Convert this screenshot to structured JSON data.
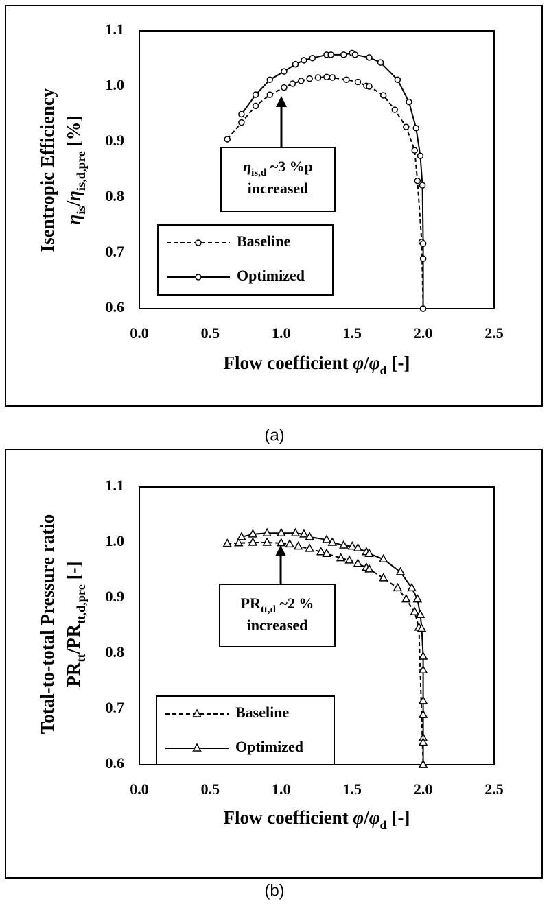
{
  "chart_data": [
    {
      "type": "line",
      "caption": "(a)",
      "x_label": [
        {
          "text": "Flow coefficient "
        },
        {
          "text": "φ",
          "italic": true
        },
        {
          "text": "/"
        },
        {
          "text": "φ",
          "italic": true
        },
        {
          "text": "d",
          "sub": true
        },
        {
          "text": " [-]"
        }
      ],
      "y_label": [
        [
          {
            "text": "Isentropic Efficiency"
          }
        ],
        [
          {
            "text": "η",
            "italic": true
          },
          {
            "text": "is",
            "sub": true
          },
          {
            "text": "/"
          },
          {
            "text": "η",
            "italic": true
          },
          {
            "text": "is,d,pre",
            "sub": true
          },
          {
            "text": " [%]"
          }
        ]
      ],
      "annotation": [
        [
          {
            "text": "η",
            "italic": true
          },
          {
            "text": "is,d",
            "sub": true
          },
          {
            "text": " ~3 %p"
          }
        ],
        [
          {
            "text": "increased"
          }
        ]
      ],
      "xlim": [
        0,
        2.5
      ],
      "ylim": [
        0.6,
        1.1
      ],
      "xticks": [
        {
          "value": 0,
          "label": "0.0"
        },
        0.5,
        {
          "value": 1,
          "label": "1.0"
        },
        1.5,
        {
          "value": 2,
          "label": "2.0"
        },
        2.5
      ],
      "yticks": [
        0.6,
        0.7,
        0.8,
        0.9,
        {
          "value": 1,
          "label": "1.0"
        },
        1.1
      ],
      "legend": "lower left",
      "series": [
        {
          "name": "Baseline",
          "color": "#000000",
          "dashed": true,
          "marker": "circle",
          "x": [
            0.62,
            0.72,
            0.82,
            0.92,
            1.02,
            1.08,
            1.14,
            1.2,
            1.26,
            1.32,
            1.36,
            1.46,
            1.54,
            1.6,
            1.62,
            1.72,
            1.8,
            1.88,
            1.94,
            1.96,
            1.99,
            2.0
          ],
          "values": [
            0.905,
            0.935,
            0.965,
            0.985,
            0.998,
            1.005,
            1.01,
            1.014,
            1.016,
            1.017,
            1.016,
            1.012,
            1.008,
            1.001,
            1.0,
            0.984,
            0.958,
            0.927,
            0.885,
            0.83,
            0.72,
            0.6
          ]
        },
        {
          "name": "Optimized",
          "color": "#000000",
          "dashed": false,
          "marker": "circle",
          "x": [
            0.72,
            0.82,
            0.92,
            1.02,
            1.1,
            1.16,
            1.22,
            1.32,
            1.35,
            1.44,
            1.5,
            1.52,
            1.62,
            1.7,
            1.82,
            1.9,
            1.95,
            1.98,
            1.995,
            2.0,
            2.0,
            2.0
          ],
          "values": [
            0.95,
            0.985,
            1.012,
            1.027,
            1.04,
            1.047,
            1.051,
            1.057,
            1.057,
            1.057,
            1.06,
            1.057,
            1.052,
            1.043,
            1.012,
            0.972,
            0.925,
            0.875,
            0.822,
            0.717,
            0.69,
            0.6
          ]
        }
      ]
    },
    {
      "type": "line",
      "caption": "(b)",
      "x_label": [
        {
          "text": "Flow coefficient "
        },
        {
          "text": "φ",
          "italic": true
        },
        {
          "text": "/"
        },
        {
          "text": "φ",
          "italic": true
        },
        {
          "text": "d",
          "sub": true
        },
        {
          "text": " [-]"
        }
      ],
      "y_label": [
        [
          {
            "text": "Total-to-total Pressure ratio"
          }
        ],
        [
          {
            "text": "PR"
          },
          {
            "text": "tt",
            "sub": true
          },
          {
            "text": "/PR"
          },
          {
            "text": "tt,d,pre",
            "sub": true
          },
          {
            "text": " [-]"
          }
        ]
      ],
      "annotation": [
        [
          {
            "text": "PR"
          },
          {
            "text": "tt,d",
            "sub": true
          },
          {
            "text": " ~2 %"
          }
        ],
        [
          {
            "text": "increased"
          }
        ]
      ],
      "xlim": [
        0,
        2.5
      ],
      "ylim": [
        0.6,
        1.1
      ],
      "xticks": [
        {
          "value": 0,
          "label": "0.0"
        },
        0.5,
        {
          "value": 1,
          "label": "1.0"
        },
        1.5,
        {
          "value": 2,
          "label": "2.0"
        },
        2.5
      ],
      "yticks": [
        0.6,
        0.7,
        0.8,
        0.9,
        {
          "value": 1,
          "label": "1.0"
        },
        1.1
      ],
      "legend": "lower left",
      "series": [
        {
          "name": "Baseline",
          "color": "#000000",
          "dashed": true,
          "marker": "triangle",
          "x": [
            0.62,
            0.7,
            0.8,
            0.9,
            1.0,
            1.06,
            1.12,
            1.2,
            1.28,
            1.32,
            1.42,
            1.48,
            1.54,
            1.6,
            1.62,
            1.72,
            1.82,
            1.88,
            1.94,
            1.97,
            2.0
          ],
          "values": [
            0.998,
            0.999,
            1.0,
            1.0,
            0.999,
            0.997,
            0.993,
            0.989,
            0.983,
            0.98,
            0.972,
            0.968,
            0.962,
            0.955,
            0.952,
            0.936,
            0.918,
            0.898,
            0.875,
            0.847,
            0.6
          ]
        },
        {
          "name": "Optimized",
          "color": "#000000",
          "dashed": false,
          "marker": "triangle",
          "x": [
            0.72,
            0.8,
            0.9,
            1.0,
            1.1,
            1.16,
            1.2,
            1.32,
            1.36,
            1.44,
            1.5,
            1.54,
            1.6,
            1.62,
            1.72,
            1.84,
            1.92,
            1.96,
            1.98,
            1.99,
            2.0,
            2.0,
            2.0,
            2.0,
            2.0,
            2.0,
            2.0
          ],
          "values": [
            1.01,
            1.015,
            1.017,
            1.017,
            1.017,
            1.015,
            1.01,
            1.005,
            1.0,
            0.995,
            0.993,
            0.99,
            0.983,
            0.98,
            0.97,
            0.947,
            0.918,
            0.898,
            0.87,
            0.845,
            0.795,
            0.77,
            0.715,
            0.69,
            0.648,
            0.64,
            0.6
          ]
        }
      ]
    }
  ]
}
